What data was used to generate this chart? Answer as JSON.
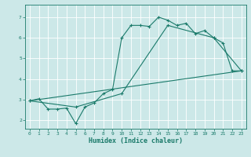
{
  "xlabel": "Humidex (Indice chaleur)",
  "bg_color": "#cce8e8",
  "line_color": "#1a7a6a",
  "xlim": [
    -0.5,
    23.5
  ],
  "ylim": [
    1.6,
    7.6
  ],
  "xticks": [
    0,
    1,
    2,
    3,
    4,
    5,
    6,
    7,
    8,
    9,
    10,
    11,
    12,
    13,
    14,
    15,
    16,
    17,
    18,
    19,
    20,
    21,
    22,
    23
  ],
  "yticks": [
    2,
    3,
    4,
    5,
    6,
    7
  ],
  "line1_x": [
    0,
    1,
    2,
    3,
    4,
    5,
    6,
    7,
    8,
    9,
    10,
    11,
    12,
    13,
    14,
    15,
    16,
    17,
    18,
    19,
    20,
    21,
    22,
    23
  ],
  "line1_y": [
    2.95,
    3.05,
    2.55,
    2.55,
    2.6,
    1.85,
    2.65,
    2.85,
    3.3,
    3.5,
    6.0,
    6.6,
    6.6,
    6.55,
    7.0,
    6.85,
    6.6,
    6.7,
    6.2,
    6.35,
    6.0,
    5.75,
    4.4,
    4.4
  ],
  "line2_x": [
    0,
    5,
    10,
    15,
    20,
    23
  ],
  "line2_y": [
    2.95,
    2.65,
    3.3,
    6.6,
    6.0,
    4.4
  ],
  "line3_x": [
    0,
    23
  ],
  "line3_y": [
    2.95,
    4.4
  ]
}
